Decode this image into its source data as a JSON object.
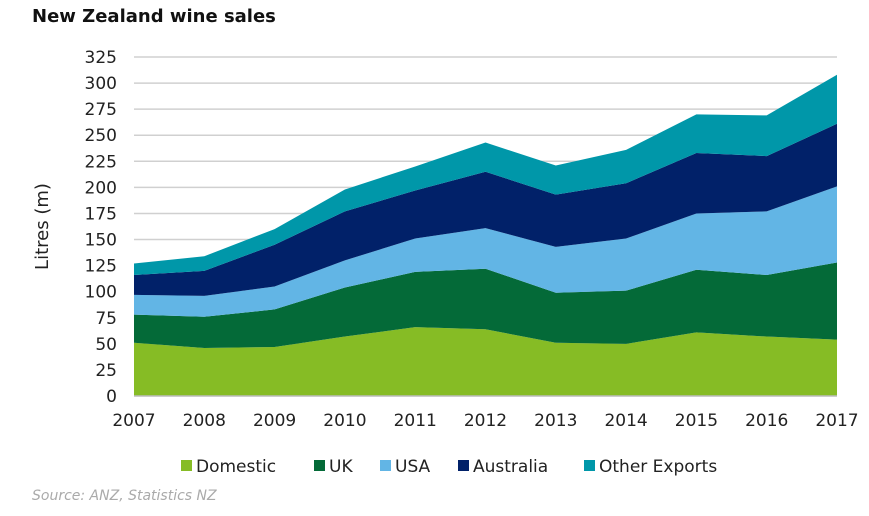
{
  "chart_data": {
    "type": "area",
    "stacked": true,
    "title": "New Zealand wine sales",
    "ylabel": "Litres (m)",
    "xlabel": "",
    "ylim": [
      0,
      325
    ],
    "yticks": [
      0,
      25,
      50,
      75,
      100,
      125,
      150,
      175,
      200,
      225,
      250,
      275,
      300,
      325
    ],
    "categories": [
      "2007",
      "2008",
      "2009",
      "2010",
      "2011",
      "2012",
      "2013",
      "2014",
      "2015",
      "2016",
      "2017"
    ],
    "series": [
      {
        "name": "Domestic",
        "color": "#86bc25",
        "values": [
          51,
          46,
          47,
          57,
          66,
          64,
          51,
          50,
          61,
          57,
          54
        ]
      },
      {
        "name": "UK",
        "color": "#046a38",
        "values": [
          27,
          30,
          36,
          47,
          53,
          58,
          48,
          51,
          60,
          59,
          74
        ]
      },
      {
        "name": "USA",
        "color": "#62b5e5",
        "values": [
          19,
          20,
          22,
          26,
          32,
          39,
          44,
          50,
          54,
          61,
          73
        ]
      },
      {
        "name": "Australia",
        "color": "#012169",
        "values": [
          19,
          24,
          40,
          47,
          46,
          54,
          50,
          53,
          58,
          53,
          60
        ]
      },
      {
        "name": "Other Exports",
        "color": "#0097a9",
        "values": [
          11,
          14,
          15,
          21,
          23,
          28,
          28,
          32,
          37,
          39,
          47
        ]
      }
    ],
    "grid": true,
    "legend": "bottom",
    "source": "Source: ANZ, Statistics NZ"
  }
}
